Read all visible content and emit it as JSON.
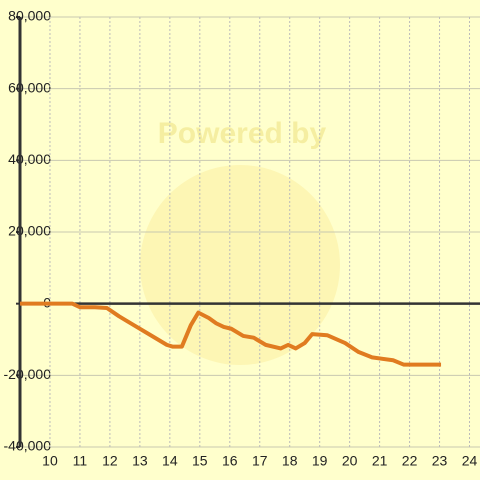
{
  "chart_data": {
    "type": "line",
    "watermark": "Powered by",
    "x": [
      9,
      10.75,
      11,
      11.5,
      11.9,
      12.3,
      12.8,
      13.3,
      13.9,
      14.1,
      14.4,
      14.7,
      14.95,
      15.3,
      15.55,
      15.8,
      16.05,
      16.45,
      16.8,
      17.2,
      17.7,
      17.95,
      18.2,
      18.5,
      18.75,
      19.25,
      19.85,
      20.3,
      20.75,
      21.45,
      21.8,
      23.05
    ],
    "series": [
      {
        "color": "#e07b20",
        "values": [
          0,
          0,
          -1000,
          -1000,
          -1200,
          -3500,
          -6000,
          -8500,
          -11500,
          -12000,
          -12000,
          -6000,
          -2500,
          -4000,
          -5500,
          -6500,
          -7000,
          -9000,
          -9500,
          -11500,
          -12500,
          -11500,
          -12500,
          -11000,
          -8500,
          -8800,
          -11000,
          -13500,
          -15000,
          -15800,
          -17000,
          -17000
        ]
      }
    ],
    "xlim": [
      9,
      24.35
    ],
    "xticks": [
      10,
      11,
      12,
      13,
      14,
      15,
      16,
      17,
      18,
      19,
      20,
      21,
      22,
      23,
      24
    ],
    "ylim": [
      -40000,
      80000
    ],
    "yticks": [
      {
        "value": -40000,
        "label": "-40,000"
      },
      {
        "value": -20000,
        "label": "-20,000"
      },
      0,
      {
        "value": 20000,
        "label": "20,000"
      },
      {
        "value": 40000,
        "label": "40,000"
      },
      {
        "value": 60000,
        "label": "60,000"
      },
      {
        "value": 80000,
        "label": "80,000"
      }
    ],
    "grid": true
  }
}
